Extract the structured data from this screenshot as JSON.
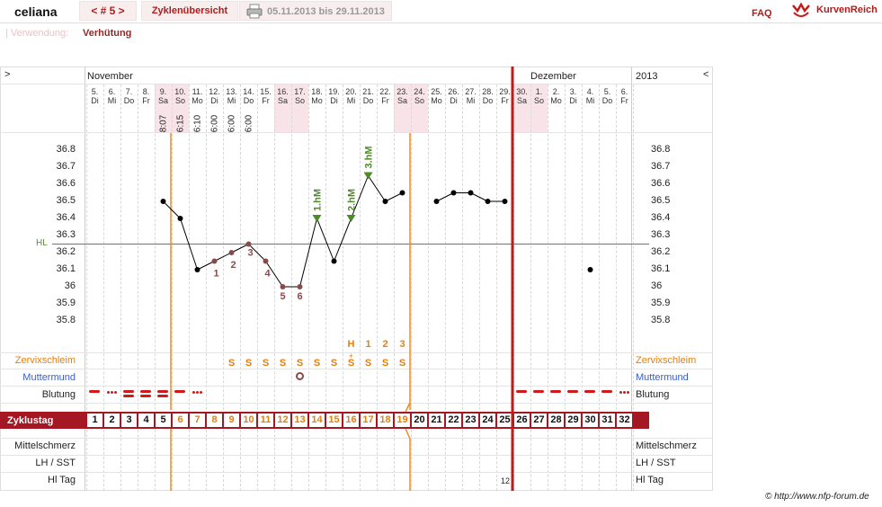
{
  "app": {
    "brand": "celiana",
    "cycle_nav": "< # 5 >",
    "overview": "Zyklenübersicht",
    "date_range": "05.11.2013 bis 29.11.2013",
    "faq": "FAQ",
    "logo": "KurvenReich",
    "usage_label": "| Verwendung:",
    "usage_value": "Verhütung",
    "copyright": "© http://www.nfp-forum.de"
  },
  "chart": {
    "month_left": "November",
    "month_right": "Dezember",
    "year": "2013",
    "nav_left": ">",
    "nav_right": "<",
    "hl_label": "HL",
    "labels_left": {
      "zervix": "Zervixschleim",
      "muttermund": "Muttermund",
      "blutung": "Blutung",
      "zyklustag": "Zyklustag",
      "mittelschmerz": "Mittelschmerz",
      "lh": "LH / SST",
      "hitag": "Hl Tag"
    },
    "labels_right": {
      "zervix": "Zervixschleim",
      "muttermund": "Muttermund",
      "blutung": "Blutung",
      "mittelschmerz": "Mittelschmerz",
      "lh": "LH / SST",
      "hitag": "Hl Tag"
    },
    "hitag_value": "12",
    "yticks": [
      "36.8",
      "36.7",
      "36.6",
      "36.5",
      "36.4",
      "36.3",
      "36.2",
      "36.1",
      "36",
      "35.9",
      "35.8"
    ],
    "days": [
      {
        "d": "5.",
        "w": "Di"
      },
      {
        "d": "6.",
        "w": "Mi"
      },
      {
        "d": "7.",
        "w": "Do"
      },
      {
        "d": "8.",
        "w": "Fr"
      },
      {
        "d": "9.",
        "w": "Sa"
      },
      {
        "d": "10.",
        "w": "So"
      },
      {
        "d": "11.",
        "w": "Mo"
      },
      {
        "d": "12.",
        "w": "Di"
      },
      {
        "d": "13.",
        "w": "Mi"
      },
      {
        "d": "14.",
        "w": "Do"
      },
      {
        "d": "15.",
        "w": "Fr"
      },
      {
        "d": "16.",
        "w": "Sa"
      },
      {
        "d": "17.",
        "w": "So"
      },
      {
        "d": "18.",
        "w": "Mo"
      },
      {
        "d": "19.",
        "w": "Di"
      },
      {
        "d": "20.",
        "w": "Mi"
      },
      {
        "d": "21.",
        "w": "Do"
      },
      {
        "d": "22.",
        "w": "Fr"
      },
      {
        "d": "23.",
        "w": "Sa"
      },
      {
        "d": "24.",
        "w": "So"
      },
      {
        "d": "25.",
        "w": "Mo"
      },
      {
        "d": "26.",
        "w": "Di"
      },
      {
        "d": "27.",
        "w": "Mi"
      },
      {
        "d": "28.",
        "w": "Do"
      },
      {
        "d": "29.",
        "w": "Fr"
      },
      {
        "d": "30.",
        "w": "Sa"
      },
      {
        "d": "1.",
        "w": "So"
      },
      {
        "d": "2.",
        "w": "Mo"
      },
      {
        "d": "3.",
        "w": "Di"
      },
      {
        "d": "4.",
        "w": "Mi"
      },
      {
        "d": "5.",
        "w": "Do"
      },
      {
        "d": "6.",
        "w": "Fr"
      }
    ],
    "times": [
      "",
      "",
      "",
      "",
      "8:07",
      "6:15",
      "6:10",
      "6:00",
      "6:00",
      "6:00",
      "",
      "",
      "",
      "",
      "",
      "",
      "",
      "",
      "",
      "",
      "",
      "",
      "",
      "",
      "",
      "",
      "",
      "",
      "",
      "",
      "",
      ""
    ],
    "cycle_days": [
      "1",
      "2",
      "3",
      "4",
      "5",
      "6",
      "7",
      "8",
      "9",
      "10",
      "11",
      "12",
      "13",
      "14",
      "15",
      "16",
      "17",
      "18",
      "19",
      "20",
      "21",
      "22",
      "23",
      "24",
      "25",
      "26",
      "27",
      "28",
      "29",
      "30",
      "31",
      "32"
    ],
    "zervix": [
      "",
      "",
      "",
      "",
      "",
      "",
      "",
      "",
      "S",
      "S",
      "S",
      "S",
      "S",
      "S",
      "S",
      "S",
      "S",
      "S",
      "S",
      "",
      "",
      "",
      "",
      "",
      "",
      "",
      "",
      "",
      "",
      "",
      "",
      ""
    ],
    "zervix_top": [
      "",
      "",
      "",
      "",
      "",
      "",
      "",
      "",
      "",
      "",
      "",
      "",
      "",
      "",
      "",
      "H",
      "1",
      "2",
      "3",
      "",
      "",
      "",
      "",
      "",
      "",
      "",
      "",
      "",
      "",
      "",
      "",
      ""
    ]
  },
  "chart_data": {
    "type": "line",
    "ylim": [
      35.8,
      36.8
    ],
    "hl": 36.25,
    "temps": [
      null,
      null,
      null,
      null,
      36.5,
      36.4,
      36.1,
      36.15,
      36.2,
      36.25,
      36.15,
      36.0,
      36.0,
      36.4,
      36.15,
      36.4,
      36.65,
      36.5,
      36.55,
      null,
      36.5,
      36.55,
      36.55,
      36.5,
      36.5,
      null,
      null,
      null,
      null,
      36.1,
      null,
      null
    ],
    "low_labels": [
      "1",
      "2",
      "3",
      "4",
      "5",
      "6"
    ],
    "high_labels": [
      "1.hM",
      "2.hM",
      "3.hM"
    ],
    "blutung": [
      2,
      1,
      3,
      3,
      3,
      2,
      1,
      0,
      0,
      0,
      0,
      0,
      0,
      0,
      0,
      0,
      0,
      0,
      0,
      0,
      0,
      0,
      0,
      0,
      0,
      2,
      2,
      2,
      2,
      2,
      2,
      1
    ],
    "colors": {
      "curve": "#000000",
      "low": "#8b4a4a",
      "high": "#4f8a2a",
      "hl": "#5a8a3a",
      "ovu": "#f08c1e",
      "cycle_end": "#c41a1a",
      "bar": "#a31822"
    }
  }
}
